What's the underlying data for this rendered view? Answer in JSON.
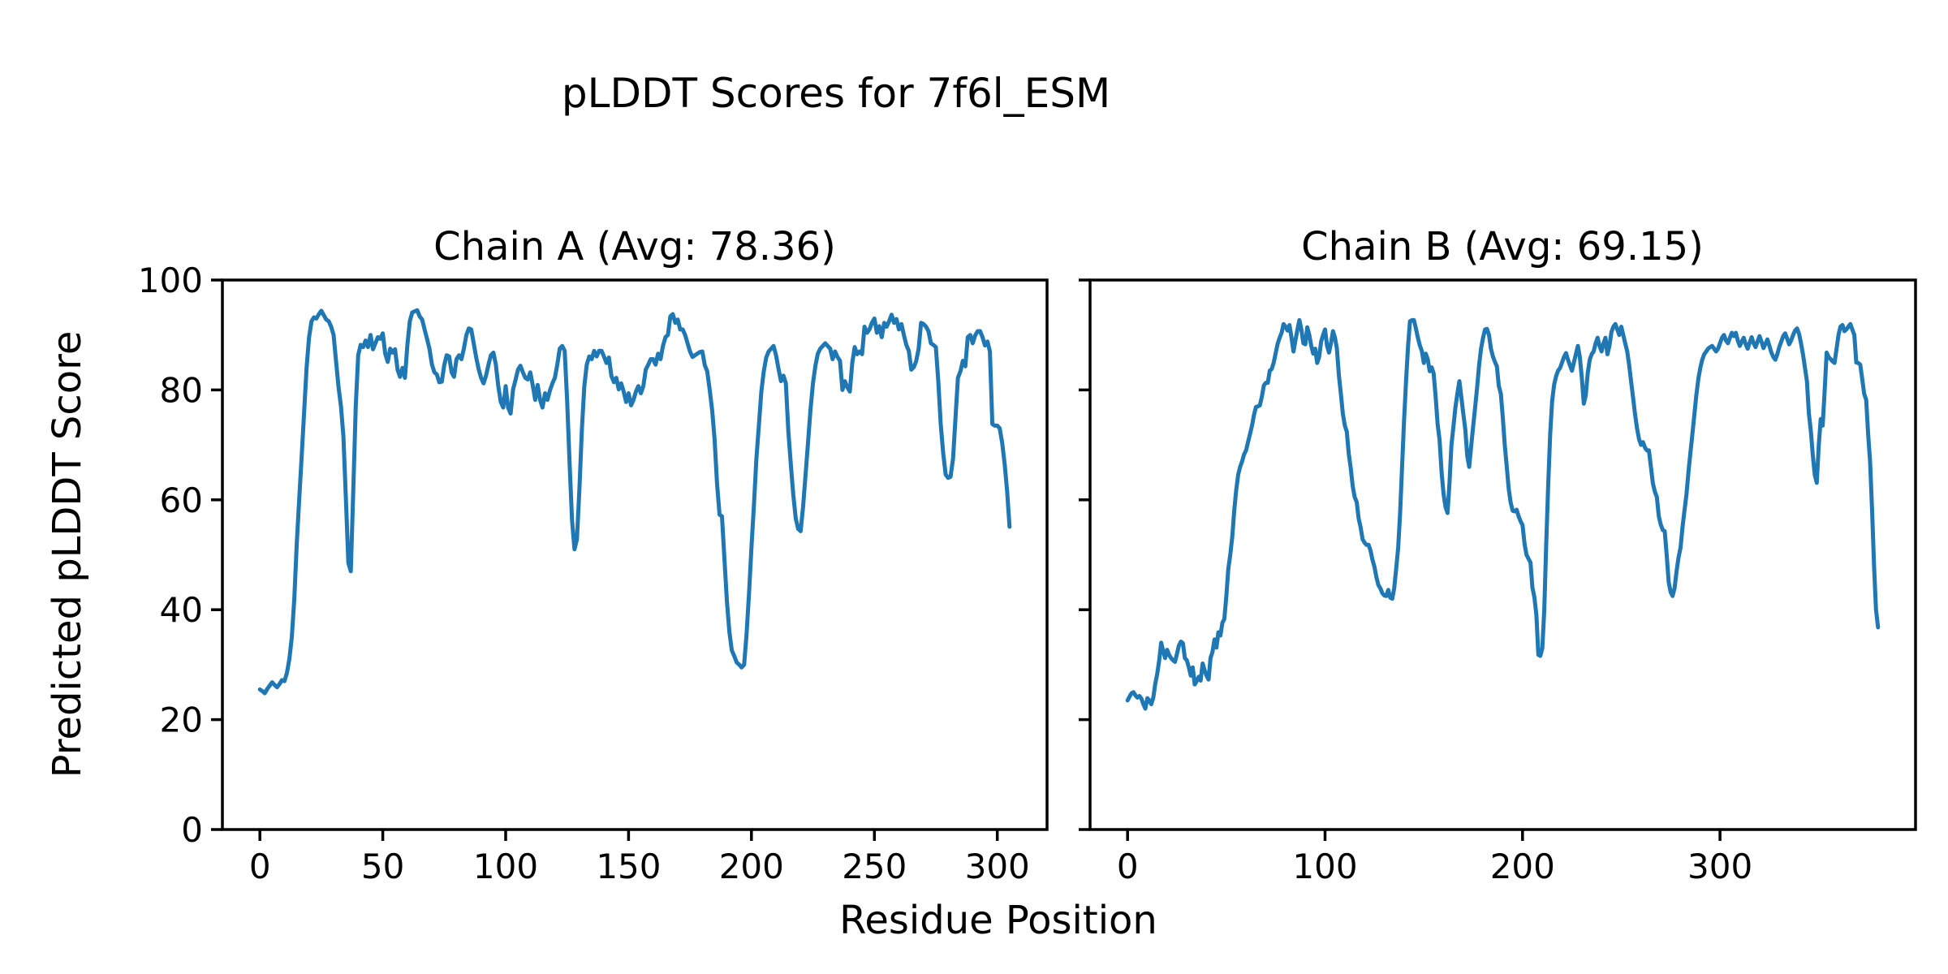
{
  "figure": {
    "title": "pLDDT Scores for 7f6l_ESM",
    "xlabel": "Residue Position",
    "ylabel": "Predicted pLDDT Score",
    "line_color": "#1f77b4",
    "background_color": "#ffffff",
    "spine_color": "#000000"
  },
  "chart_data": [
    {
      "type": "line",
      "svg_name": "chain-a-plot",
      "chain": "A",
      "title": "Chain A (Avg: 78.36)",
      "average": 78.36,
      "xlabel": "Residue Position",
      "ylabel": "Predicted pLDDT Score",
      "xlim": [
        -15.25,
        320.25
      ],
      "ylim": [
        0,
        100
      ],
      "xticks": [
        0,
        50,
        100,
        150,
        200,
        250,
        300
      ],
      "yticks": [
        0,
        20,
        40,
        60,
        80,
        100
      ],
      "show_ytick_labels": true,
      "grid": false,
      "x_start": 0,
      "values": [
        25.5,
        25.2,
        24.8,
        25.6,
        26.2,
        26.8,
        26.3,
        25.9,
        26.5,
        27.2,
        27.0,
        28.5,
        31.0,
        35.0,
        42.0,
        52.0,
        60.0,
        68.0,
        76.0,
        84.0,
        89.5,
        92.5,
        93.2,
        93.0,
        93.8,
        94.4,
        93.6,
        92.8,
        92.5,
        91.5,
        90.0,
        85.1,
        80.5,
        77.0,
        71.5,
        60.0,
        48.5,
        47.0,
        62.0,
        77.0,
        86.3,
        88.2,
        87.8,
        89.0,
        87.8,
        90.0,
        87.4,
        88.5,
        89.6,
        89.3,
        90.3,
        86.6,
        85.1,
        87.5,
        86.8,
        87.4,
        83.7,
        82.4,
        84.0,
        82.2,
        88.2,
        92.5,
        94.1,
        94.3,
        94.5,
        93.4,
        92.8,
        91.0,
        89.3,
        87.5,
        84.6,
        83.2,
        82.8,
        81.4,
        81.5,
        84.5,
        86.3,
        86.1,
        83.2,
        82.4,
        85.6,
        86.3,
        85.6,
        87.5,
        90.0,
        91.2,
        91.0,
        88.5,
        85.9,
        83.8,
        82.2,
        81.2,
        82.6,
        84.6,
        86.3,
        86.8,
        84.6,
        80.7,
        77.8,
        76.8,
        80.7,
        76.8,
        75.7,
        80.1,
        81.8,
        83.7,
        84.4,
        83.2,
        82.2,
        81.9,
        83.2,
        80.9,
        78.2,
        80.9,
        78.2,
        76.8,
        79.4,
        78.2,
        79.9,
        81.2,
        82.2,
        84.6,
        87.5,
        88.0,
        87.1,
        78.2,
        66.9,
        56.2,
        51.0,
        52.8,
        62.1,
        72.8,
        80.7,
        84.6,
        86.1,
        85.6,
        87.1,
        86.1,
        87.1,
        87.1,
        86.1,
        84.9,
        85.9,
        82.6,
        81.4,
        82.2,
        80.1,
        81.2,
        79.7,
        77.8,
        79.4,
        77.2,
        78.2,
        79.7,
        80.7,
        79.4,
        80.7,
        83.7,
        84.6,
        85.6,
        85.6,
        84.6,
        86.6,
        85.6,
        88.0,
        89.6,
        90.0,
        93.4,
        93.8,
        92.2,
        92.8,
        91.0,
        91.0,
        90.0,
        88.5,
        87.0,
        86.0,
        86.3,
        86.6,
        86.9,
        87.0,
        84.5,
        83.4,
        80.0,
        76.3,
        71.0,
        63.0,
        57.3,
        57.0,
        49.3,
        41.5,
        36.0,
        32.6,
        31.6,
        30.4,
        30.0,
        29.5,
        30.0,
        35.6,
        42.9,
        51.3,
        59.1,
        67.5,
        73.4,
        79.7,
        83.4,
        85.9,
        87.0,
        87.5,
        88.0,
        86.3,
        83.8,
        81.6,
        82.6,
        81.2,
        72.4,
        66.5,
        61.0,
        56.6,
        54.7,
        54.3,
        58.7,
        64.6,
        70.4,
        76.3,
        81.2,
        84.4,
        86.6,
        87.5,
        88.0,
        88.5,
        88.0,
        87.5,
        85.6,
        87.0,
        86.0,
        85.3,
        80.0,
        81.6,
        80.5,
        79.7,
        84.9,
        87.8,
        86.5,
        87.0,
        86.5,
        91.5,
        90.4,
        91.0,
        92.2,
        93.0,
        90.4,
        91.6,
        89.6,
        92.2,
        91.5,
        92.5,
        93.7,
        92.2,
        92.9,
        91.0,
        92.0,
        90.0,
        88.2,
        87.1,
        83.7,
        84.1,
        85.2,
        87.5,
        92.2,
        92.0,
        91.5,
        90.7,
        88.5,
        88.2,
        87.8,
        81.6,
        73.8,
        68.4,
        64.6,
        64.0,
        64.2,
        67.5,
        74.9,
        82.2,
        83.4,
        85.3,
        84.3,
        89.6,
        90.0,
        88.5,
        89.9,
        90.7,
        90.7,
        89.6,
        88.1,
        88.8,
        87.0,
        73.8,
        73.5,
        73.5,
        73.0,
        70.4,
        66.5,
        61.6,
        55.1
      ]
    },
    {
      "type": "line",
      "svg_name": "chain-b-plot",
      "chain": "B",
      "title": "Chain B (Avg: 69.15)",
      "average": 69.15,
      "xlabel": "Residue Position",
      "ylabel": "Predicted pLDDT Score",
      "xlim": [
        -19,
        399
      ],
      "ylim": [
        0,
        100
      ],
      "xticks": [
        0,
        100,
        200,
        300
      ],
      "yticks": [
        0,
        20,
        40,
        60,
        80,
        100
      ],
      "show_ytick_labels": false,
      "grid": false,
      "x_start": 0,
      "values": [
        23.5,
        24.2,
        24.8,
        25.0,
        24.4,
        24.0,
        24.3,
        23.8,
        22.8,
        22.0,
        23.9,
        23.5,
        22.8,
        24.0,
        26.5,
        28.3,
        30.8,
        34.0,
        32.5,
        31.2,
        32.7,
        31.8,
        31.2,
        30.8,
        30.5,
        32.0,
        33.5,
        34.2,
        33.9,
        31.2,
        30.8,
        29.5,
        28.0,
        29.5,
        26.4,
        27.0,
        27.8,
        27.1,
        30.2,
        29.0,
        28.0,
        27.3,
        31.2,
        32.3,
        34.6,
        33.1,
        35.9,
        35.3,
        37.6,
        38.3,
        42.5,
        47.4,
        50.0,
        53.3,
        58.0,
        61.7,
        64.6,
        66.0,
        67.0,
        68.3,
        69.0,
        70.5,
        72.0,
        73.5,
        75.4,
        76.9,
        77.0,
        77.2,
        78.8,
        80.8,
        81.3,
        81.3,
        83.5,
        83.8,
        85.0,
        86.7,
        88.4,
        89.5,
        90.4,
        92.0,
        91.5,
        90.8,
        91.8,
        89.5,
        87.0,
        89.0,
        91.0,
        92.7,
        91.0,
        88.5,
        88.3,
        91.4,
        90.0,
        88.0,
        86.6,
        87.5,
        84.9,
        86.0,
        88.8,
        90.0,
        91.0,
        88.0,
        86.8,
        88.5,
        90.7,
        89.5,
        87.5,
        82.6,
        79.3,
        75.7,
        73.5,
        72.4,
        68.4,
        65.7,
        62.5,
        60.5,
        59.6,
        56.6,
        55.0,
        52.8,
        52.2,
        51.8,
        51.8,
        50.8,
        49.1,
        47.8,
        45.9,
        44.5,
        43.9,
        43.0,
        42.6,
        42.5,
        43.6,
        42.2,
        42.0,
        43.9,
        47.4,
        51.3,
        57.6,
        66.0,
        74.3,
        81.6,
        87.8,
        92.5,
        92.7,
        92.7,
        91.2,
        89.5,
        88.1,
        87.1,
        84.9,
        86.6,
        85.6,
        83.4,
        84.1,
        83.0,
        78.7,
        73.8,
        70.9,
        65.0,
        61.1,
        58.7,
        57.6,
        63.0,
        69.9,
        73.4,
        76.8,
        79.3,
        81.6,
        78.7,
        75.7,
        72.8,
        68.0,
        66.0,
        69.9,
        73.4,
        76.8,
        80.5,
        84.5,
        87.5,
        89.5,
        91.0,
        91.1,
        90.0,
        87.5,
        86.1,
        85.1,
        84.3,
        80.7,
        79.3,
        75.0,
        70.0,
        66.0,
        62.0,
        59.5,
        58.0,
        57.9,
        58.2,
        57.0,
        56.1,
        55.4,
        52.0,
        50.0,
        49.3,
        48.6,
        44.0,
        42.3,
        39.0,
        31.8,
        31.6,
        33.0,
        40.0,
        52.0,
        63.0,
        72.0,
        78.0,
        81.0,
        82.5,
        83.5,
        84.0,
        85.0,
        86.0,
        86.7,
        85.5,
        84.5,
        83.5,
        85.0,
        86.5,
        88.0,
        86.0,
        82.3,
        77.5,
        79.0,
        83.0,
        85.5,
        86.5,
        87.0,
        88.5,
        89.5,
        88.0,
        87.0,
        88.5,
        89.5,
        86.5,
        88.0,
        90.5,
        91.5,
        92.0,
        91.0,
        90.0,
        91.5,
        90.0,
        88.5,
        87.0,
        84.5,
        81.5,
        78.5,
        75.5,
        73.0,
        71.0,
        70.0,
        70.5,
        69.5,
        69.0,
        69.0,
        66.0,
        63.0,
        61.5,
        60.5,
        57.0,
        55.5,
        54.5,
        54.3,
        50.0,
        45.0,
        43.2,
        42.5,
        44.0,
        47.0,
        49.5,
        51.3,
        55.0,
        58.0,
        61.0,
        65.0,
        68.5,
        72.0,
        75.5,
        79.0,
        82.0,
        84.0,
        85.5,
        86.5,
        87.0,
        87.5,
        87.8,
        88.0,
        87.5,
        87.0,
        87.5,
        88.5,
        89.5,
        90.0,
        89.0,
        88.5,
        89.5,
        90.4,
        89.8,
        90.4,
        89.0,
        88.0,
        88.8,
        89.5,
        88.3,
        87.5,
        88.6,
        89.6,
        88.5,
        87.8,
        88.8,
        89.8,
        88.8,
        87.6,
        88.4,
        89.2,
        88.0,
        86.8,
        86.0,
        85.5,
        86.5,
        87.8,
        88.8,
        89.8,
        90.3,
        89.3,
        88.3,
        89.0,
        90.0,
        90.8,
        91.2,
        90.2,
        88.5,
        86.5,
        84.0,
        81.6,
        75.7,
        72.4,
        68.0,
        64.5,
        63.1,
        70.0,
        74.7,
        73.5,
        80.0,
        86.8,
        86.0,
        85.6,
        85.2,
        84.9,
        87.5,
        90.0,
        91.5,
        91.8,
        90.7,
        91.0,
        91.5,
        92.0,
        91.0,
        90.0,
        85.0,
        84.9,
        84.6,
        82.0,
        79.3,
        78.2,
        72.0,
        67.0,
        58.0,
        48.0,
        40.0,
        36.8
      ]
    }
  ]
}
